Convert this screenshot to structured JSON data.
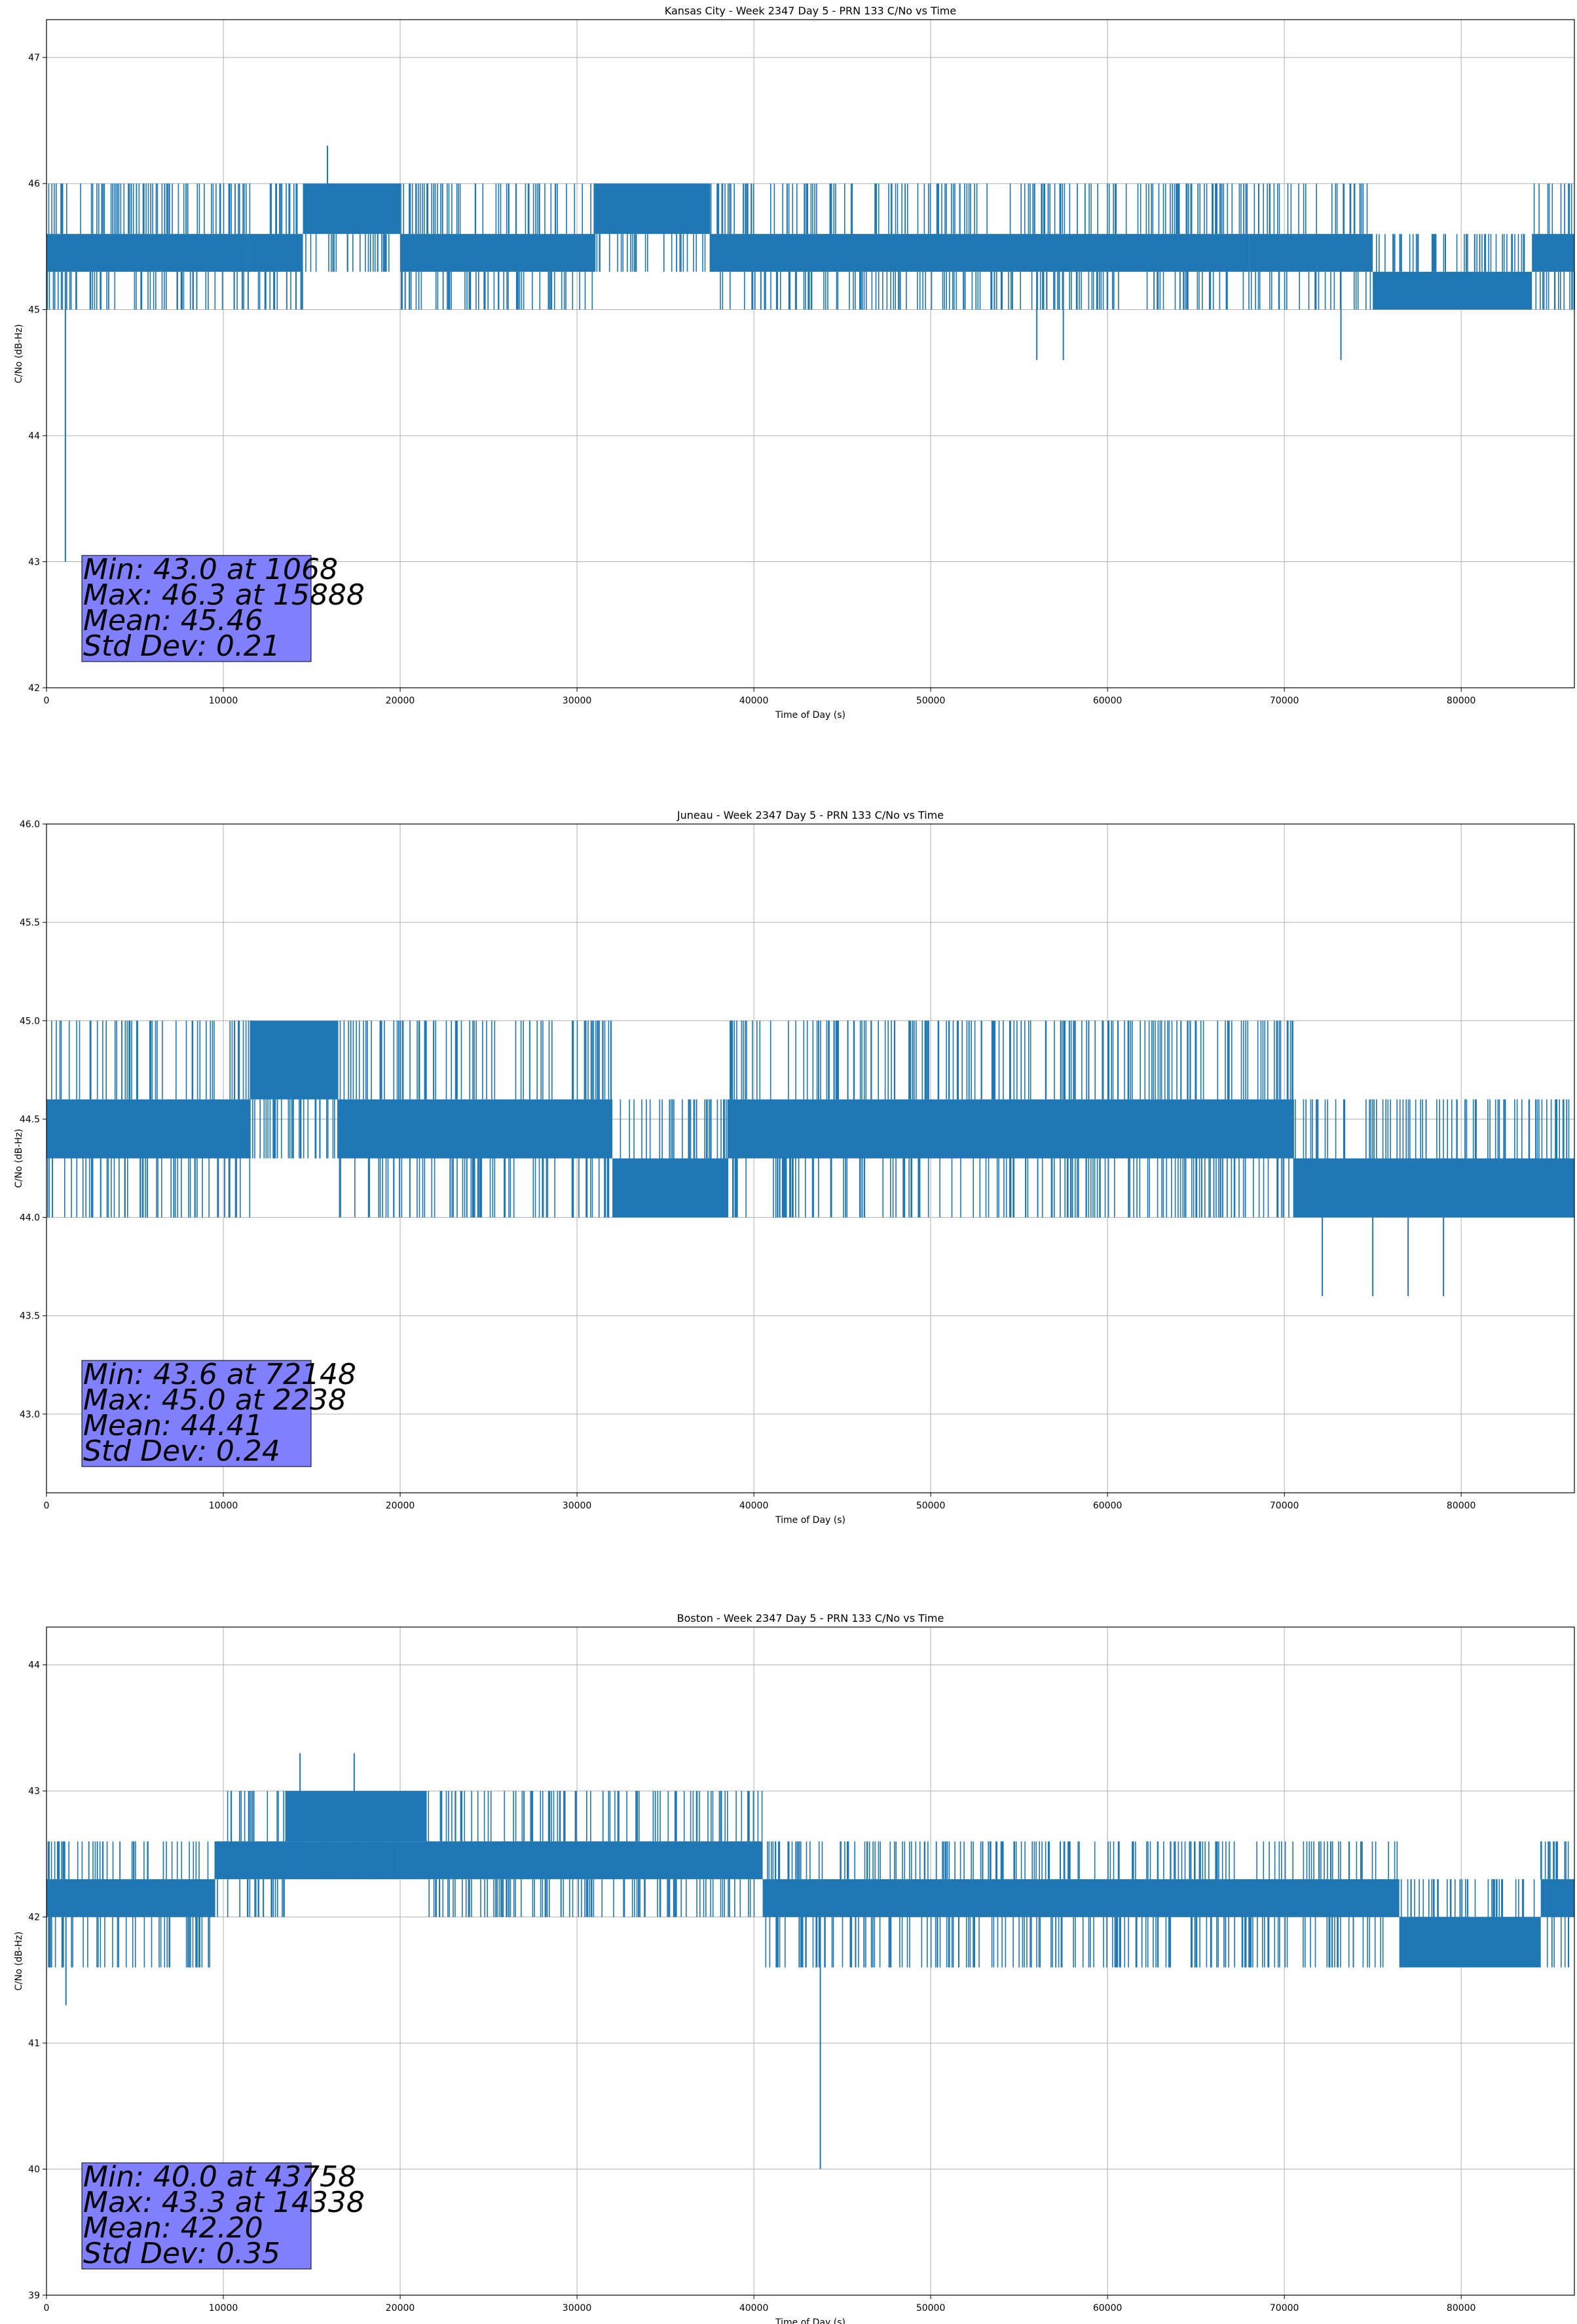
{
  "chart_data": [
    {
      "type": "line",
      "title": "Kansas City - Week 2347 Day 5 - PRN 133 C/No vs Time",
      "xlabel": "Time of Day (s)",
      "ylabel": "C/No (dB-Hz)",
      "xlim": [
        0,
        86400
      ],
      "ylim": [
        42,
        47.3
      ],
      "x_ticks": [
        0,
        10000,
        20000,
        30000,
        40000,
        50000,
        60000,
        70000,
        80000
      ],
      "x_tick_labels": [
        "0",
        "10000",
        "20000",
        "30000",
        "40000",
        "50000",
        "60000",
        "70000",
        "80000"
      ],
      "y_ticks": [
        42,
        43,
        44,
        45,
        46,
        47
      ],
      "y_tick_labels": [
        "42",
        "43",
        "44",
        "45",
        "46",
        "47"
      ],
      "grid": true,
      "color": "#1f77b4",
      "bands": [
        {
          "x": [
            0,
            11500
          ],
          "lo": 45.3,
          "hi": 45.6
        },
        {
          "x": [
            11500,
            14500
          ],
          "lo": 45.3,
          "hi": 45.6
        },
        {
          "x": [
            14500,
            20000
          ],
          "lo": 45.6,
          "hi": 46.0
        },
        {
          "x": [
            20000,
            31000
          ],
          "lo": 45.3,
          "hi": 45.6
        },
        {
          "x": [
            31000,
            37500
          ],
          "lo": 45.6,
          "hi": 46.0
        },
        {
          "x": [
            37500,
            68000
          ],
          "lo": 45.3,
          "hi": 45.6
        },
        {
          "x": [
            68000,
            75000
          ],
          "lo": 45.3,
          "hi": 45.6
        },
        {
          "x": [
            75000,
            84000
          ],
          "lo": 45.0,
          "hi": 45.3
        },
        {
          "x": [
            84000,
            86400
          ],
          "lo": 45.3,
          "hi": 45.6
        }
      ],
      "spike_levels": [
        45.0,
        45.3,
        45.6,
        46.0
      ],
      "outliers": [
        {
          "x": 1068,
          "y": 43.0
        },
        {
          "x": 15888,
          "y": 46.3
        },
        {
          "x": 56000,
          "y": 44.6
        },
        {
          "x": 57500,
          "y": 44.6
        },
        {
          "x": 73200,
          "y": 44.6
        }
      ],
      "stats": {
        "min": "Min: 43.0 at 1068",
        "max": "Max: 46.3 at 15888",
        "mean": "Mean: 45.46",
        "std": "Std Dev: 0.21"
      }
    },
    {
      "type": "line",
      "title": "Juneau - Week 2347 Day 5 - PRN 133 C/No vs Time",
      "xlabel": "Time of Day (s)",
      "ylabel": "C/No (dB-Hz)",
      "xlim": [
        0,
        86400
      ],
      "ylim": [
        42.6,
        46.0
      ],
      "x_ticks": [
        0,
        10000,
        20000,
        30000,
        40000,
        50000,
        60000,
        70000,
        80000
      ],
      "x_tick_labels": [
        "0",
        "10000",
        "20000",
        "30000",
        "40000",
        "50000",
        "60000",
        "70000",
        "80000"
      ],
      "y_ticks": [
        43.0,
        43.5,
        44.0,
        44.5,
        45.0,
        45.5,
        46.0
      ],
      "y_tick_labels": [
        "43.0",
        "43.5",
        "44.0",
        "44.5",
        "45.0",
        "45.5",
        "46.0"
      ],
      "grid": true,
      "color": "#1f77b4",
      "bands": [
        {
          "x": [
            0,
            11500
          ],
          "lo": 44.3,
          "hi": 44.6
        },
        {
          "x": [
            11500,
            16500
          ],
          "lo": 44.6,
          "hi": 45.0
        },
        {
          "x": [
            16500,
            32000
          ],
          "lo": 44.3,
          "hi": 44.6
        },
        {
          "x": [
            32000,
            38500
          ],
          "lo": 44.0,
          "hi": 44.3
        },
        {
          "x": [
            38500,
            70500
          ],
          "lo": 44.3,
          "hi": 44.6
        },
        {
          "x": [
            70500,
            86400
          ],
          "lo": 44.0,
          "hi": 44.3
        }
      ],
      "spike_levels": [
        44.0,
        44.3,
        44.6,
        45.0
      ],
      "outliers": [
        {
          "x": 72148,
          "y": 43.6
        },
        {
          "x": 75000,
          "y": 43.6
        },
        {
          "x": 77000,
          "y": 43.6
        },
        {
          "x": 79000,
          "y": 43.6
        },
        {
          "x": 5700,
          "y": 44.0
        }
      ],
      "stats": {
        "min": "Min: 43.6 at 72148",
        "max": "Max: 45.0 at 2238",
        "mean": "Mean: 44.41",
        "std": "Std Dev: 0.24"
      }
    },
    {
      "type": "line",
      "title": "Boston - Week 2347 Day 5 - PRN 133 C/No vs Time",
      "xlabel": "Time of Day (s)",
      "ylabel": "C/No (dB-Hz)",
      "xlim": [
        0,
        86400
      ],
      "ylim": [
        39,
        44.3
      ],
      "x_ticks": [
        0,
        10000,
        20000,
        30000,
        40000,
        50000,
        60000,
        70000,
        80000
      ],
      "x_tick_labels": [
        "0",
        "10000",
        "20000",
        "30000",
        "40000",
        "50000",
        "60000",
        "70000",
        "80000"
      ],
      "y_ticks": [
        39,
        40,
        41,
        42,
        43,
        44
      ],
      "y_tick_labels": [
        "39",
        "40",
        "41",
        "42",
        "43",
        "44"
      ],
      "grid": true,
      "color": "#1f77b4",
      "bands": [
        {
          "x": [
            0,
            9500
          ],
          "lo": 42.0,
          "hi": 42.3
        },
        {
          "x": [
            9500,
            40500
          ],
          "lo": 42.3,
          "hi": 42.6
        },
        {
          "x": [
            13500,
            21500
          ],
          "lo": 42.6,
          "hi": 43.0
        },
        {
          "x": [
            40500,
            76500
          ],
          "lo": 42.0,
          "hi": 42.3
        },
        {
          "x": [
            76500,
            84500
          ],
          "lo": 41.6,
          "hi": 42.0
        },
        {
          "x": [
            84500,
            86400
          ],
          "lo": 42.0,
          "hi": 42.3
        }
      ],
      "spike_levels": [
        41.6,
        42.0,
        42.3,
        42.6,
        43.0
      ],
      "outliers": [
        {
          "x": 43758,
          "y": 40.0
        },
        {
          "x": 14338,
          "y": 43.3
        },
        {
          "x": 17400,
          "y": 43.3
        },
        {
          "x": 1100,
          "y": 41.3
        },
        {
          "x": 8000,
          "y": 41.6
        }
      ],
      "stats": {
        "min": "Min: 40.0 at 43758",
        "max": "Max: 43.3 at 14338",
        "mean": "Mean: 42.20",
        "std": "Std Dev: 0.35"
      }
    }
  ],
  "colors": {
    "line": "#1f77b4",
    "statbox": "#8080ff",
    "grid": "#b0b0b0"
  }
}
